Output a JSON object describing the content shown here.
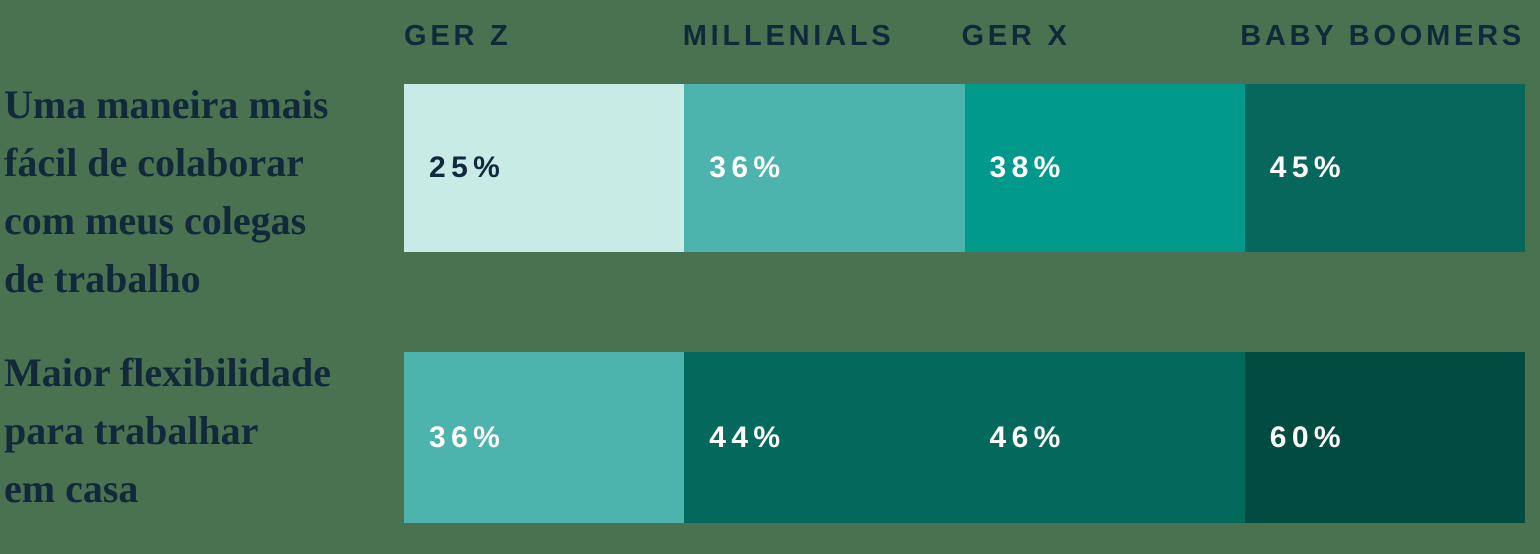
{
  "columns": [
    "GER Z",
    "MILLENIALS",
    "GER X",
    "BABY BOOMERS"
  ],
  "rows": [
    {
      "label": "Uma maneira mais fácil de colaborar com meus colegas de trabalho",
      "label_lines": [
        "Uma maneira mais",
        "fácil de colaborar",
        "com meus colegas",
        "de trabalho"
      ],
      "values": [
        "25%",
        "36%",
        "38%",
        "45%"
      ]
    },
    {
      "label": "Maior flexibilidade para trabalhar em casa",
      "label_lines": [
        "Maior flexibilidade",
        "para trabalhar",
        "em casa"
      ],
      "values": [
        "36%",
        "44%",
        "46%",
        "60%"
      ]
    }
  ],
  "colors": {
    "background": "#4A7150",
    "header_text": "#102A3A",
    "label_text": "#12293B",
    "value_text_light": "#FFFFFF",
    "value_text_dark": "#12293B",
    "row1_segments": [
      "#C9EBE6",
      "#4DB4AD",
      "#00998B",
      "#07675C"
    ],
    "row2_segments": [
      "#4DB4AD",
      "#04695D",
      "#04695D",
      "#024B40"
    ]
  },
  "chart_data": {
    "type": "bar",
    "categories": [
      "GER Z",
      "MILLENIALS",
      "GER X",
      "BABY BOOMERS"
    ],
    "series": [
      {
        "name": "Uma maneira mais fácil de colaborar com meus colegas de trabalho",
        "values": [
          25,
          36,
          38,
          45
        ]
      },
      {
        "name": "Maior flexibilidade para trabalhar em casa",
        "values": [
          36,
          44,
          46,
          60
        ]
      }
    ],
    "unit": "%",
    "title": "",
    "xlabel": "",
    "ylabel": "",
    "legend_position": "top (category names as column headers)",
    "layout": "two horizontal bars, each split into 4 equal-width segments shaded light-to-dark with in-segment percentage labels",
    "grid": false
  }
}
